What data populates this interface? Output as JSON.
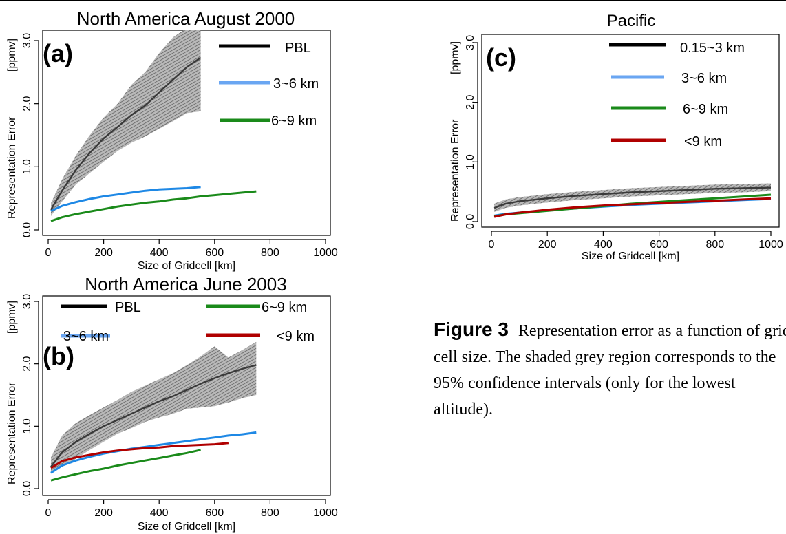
{
  "chart_data": [
    {
      "panel": "a",
      "type": "line",
      "panel_label": "(a)",
      "title": "North America August 2000",
      "xlabel": "Size of Gridcell [km]",
      "ylabel": "Representation Error",
      "yunit": "[ppmv]",
      "xlim": [
        0,
        1000
      ],
      "ylim": [
        0,
        3
      ],
      "xticks": [
        "0",
        "200",
        "400",
        "600",
        "800",
        "1000"
      ],
      "yticks": [
        "0.0",
        "1.0",
        "2.0",
        "3.0"
      ],
      "grid": false,
      "legend_position": "top-right",
      "series": [
        {
          "name": "PBL",
          "color": "#000000",
          "x": [
            10,
            50,
            100,
            150,
            200,
            250,
            300,
            350,
            400,
            450,
            500,
            550
          ],
          "y": [
            0.32,
            0.62,
            0.95,
            1.22,
            1.45,
            1.63,
            1.82,
            1.97,
            2.18,
            2.38,
            2.58,
            2.73
          ]
        },
        {
          "name": "3~6 km",
          "color": "#1e88e5",
          "x": [
            10,
            50,
            100,
            150,
            200,
            250,
            300,
            350,
            400,
            450,
            500,
            550
          ],
          "y": [
            0.3,
            0.38,
            0.44,
            0.49,
            0.53,
            0.56,
            0.59,
            0.62,
            0.64,
            0.65,
            0.66,
            0.68
          ]
        },
        {
          "name": "6~9 km",
          "color": "#1a8a1a",
          "x": [
            10,
            50,
            100,
            150,
            200,
            250,
            300,
            350,
            400,
            450,
            500,
            550,
            600,
            650,
            700,
            750
          ],
          "y": [
            0.14,
            0.2,
            0.25,
            0.29,
            0.33,
            0.37,
            0.4,
            0.43,
            0.45,
            0.48,
            0.5,
            0.53,
            0.55,
            0.57,
            0.59,
            0.61
          ]
        }
      ],
      "band": {
        "x": [
          10,
          50,
          100,
          150,
          200,
          250,
          300,
          350,
          400,
          450,
          500,
          550
        ],
        "lower": [
          0.22,
          0.45,
          0.72,
          0.9,
          1.08,
          1.25,
          1.38,
          1.48,
          1.6,
          1.72,
          1.85,
          1.88
        ],
        "upper": [
          0.42,
          0.8,
          1.18,
          1.5,
          1.78,
          2.0,
          2.3,
          2.5,
          2.8,
          3.05,
          3.2,
          3.2
        ]
      }
    },
    {
      "panel": "b",
      "type": "line",
      "panel_label": "(b)",
      "title": "North America June 2003",
      "xlabel": "Size of Gridcell [km]",
      "ylabel": "Representation Error",
      "yunit": "[ppmv]",
      "xlim": [
        0,
        1000
      ],
      "ylim": [
        0,
        3
      ],
      "xticks": [
        "0",
        "200",
        "400",
        "600",
        "800",
        "1000"
      ],
      "yticks": [
        "0.0",
        "1.0",
        "2.0",
        "3.0"
      ],
      "grid": false,
      "legend_position": "top",
      "series": [
        {
          "name": "PBL",
          "color": "#000000",
          "x": [
            10,
            50,
            100,
            150,
            200,
            250,
            300,
            350,
            400,
            450,
            500,
            550,
            600,
            650,
            700,
            750
          ],
          "y": [
            0.35,
            0.58,
            0.75,
            0.88,
            1.0,
            1.1,
            1.2,
            1.3,
            1.4,
            1.48,
            1.58,
            1.68,
            1.77,
            1.85,
            1.92,
            1.98
          ]
        },
        {
          "name": "3~6 km",
          "color": "#1e88e5",
          "x": [
            10,
            50,
            100,
            150,
            200,
            250,
            300,
            350,
            400,
            450,
            500,
            550,
            600,
            650,
            700,
            750
          ],
          "y": [
            0.25,
            0.37,
            0.45,
            0.51,
            0.56,
            0.6,
            0.64,
            0.67,
            0.7,
            0.73,
            0.76,
            0.79,
            0.82,
            0.85,
            0.87,
            0.9
          ]
        },
        {
          "name": "6~9 km",
          "color": "#1a8a1a",
          "x": [
            10,
            50,
            100,
            150,
            200,
            250,
            300,
            350,
            400,
            450,
            500,
            550
          ],
          "y": [
            0.13,
            0.18,
            0.23,
            0.28,
            0.32,
            0.37,
            0.41,
            0.45,
            0.49,
            0.53,
            0.57,
            0.62
          ]
        },
        {
          "name": "<9 km",
          "color": "#b00000",
          "x": [
            10,
            50,
            100,
            150,
            200,
            250,
            300,
            350,
            400,
            450,
            500,
            550,
            600,
            650
          ],
          "y": [
            0.33,
            0.44,
            0.5,
            0.54,
            0.58,
            0.61,
            0.63,
            0.65,
            0.66,
            0.68,
            0.69,
            0.7,
            0.71,
            0.73
          ]
        }
      ],
      "band": {
        "x": [
          10,
          50,
          100,
          150,
          200,
          250,
          300,
          350,
          400,
          450,
          500,
          550,
          600,
          650,
          700,
          750
        ],
        "lower": [
          0.25,
          0.35,
          0.48,
          0.62,
          0.75,
          0.88,
          0.97,
          1.07,
          1.14,
          1.2,
          1.28,
          1.3,
          1.32,
          1.38,
          1.45,
          1.5
        ],
        "upper": [
          0.5,
          0.85,
          1.05,
          1.18,
          1.3,
          1.42,
          1.55,
          1.65,
          1.75,
          1.85,
          1.98,
          2.12,
          2.28,
          2.1,
          2.22,
          2.35
        ]
      }
    },
    {
      "panel": "c",
      "type": "line",
      "panel_label": "(c)",
      "title": "Pacific",
      "xlabel": "Size of Gridcell [km]",
      "ylabel": "Representation Error",
      "yunit": "[ppmv]",
      "xlim": [
        0,
        1000
      ],
      "ylim": [
        0,
        3
      ],
      "xticks": [
        "0",
        "200",
        "400",
        "600",
        "800",
        "1000"
      ],
      "yticks": [
        "0.0",
        "1.0",
        "2.0",
        "3.0"
      ],
      "grid": false,
      "legend_position": "top-right",
      "series": [
        {
          "name": "0.15~3 km",
          "color": "#000000",
          "x": [
            10,
            50,
            100,
            200,
            300,
            400,
            500,
            600,
            700,
            800,
            900,
            1000
          ],
          "y": [
            0.23,
            0.3,
            0.34,
            0.39,
            0.43,
            0.46,
            0.49,
            0.51,
            0.53,
            0.55,
            0.56,
            0.57
          ]
        },
        {
          "name": "3~6 km",
          "color": "#1e88e5",
          "x": [
            10,
            50,
            100,
            200,
            300,
            400,
            500,
            600,
            700,
            800,
            900,
            1000
          ],
          "y": [
            0.1,
            0.13,
            0.15,
            0.19,
            0.22,
            0.25,
            0.28,
            0.3,
            0.32,
            0.34,
            0.36,
            0.38
          ]
        },
        {
          "name": "6~9 km",
          "color": "#1a8a1a",
          "x": [
            10,
            50,
            100,
            200,
            300,
            400,
            500,
            600,
            700,
            800,
            900,
            1000
          ],
          "y": [
            0.09,
            0.12,
            0.14,
            0.18,
            0.22,
            0.26,
            0.3,
            0.33,
            0.36,
            0.39,
            0.42,
            0.45
          ]
        },
        {
          "name": "<9 km",
          "color": "#b00000",
          "x": [
            10,
            50,
            100,
            200,
            300,
            400,
            500,
            600,
            700,
            800,
            900,
            1000
          ],
          "y": [
            0.08,
            0.12,
            0.15,
            0.2,
            0.24,
            0.27,
            0.29,
            0.31,
            0.33,
            0.35,
            0.37,
            0.39
          ]
        }
      ],
      "band": {
        "x": [
          10,
          50,
          100,
          200,
          300,
          400,
          500,
          600,
          700,
          800,
          900,
          1000
        ],
        "lower": [
          0.16,
          0.23,
          0.27,
          0.32,
          0.36,
          0.39,
          0.42,
          0.44,
          0.46,
          0.48,
          0.49,
          0.51
        ],
        "upper": [
          0.3,
          0.37,
          0.41,
          0.46,
          0.5,
          0.53,
          0.56,
          0.58,
          0.6,
          0.62,
          0.63,
          0.64
        ]
      }
    }
  ],
  "caption": {
    "figure_label": "Figure 3",
    "text": "Representation error as a function of grid cell size. The shaded grey region corresponds to the 95% confidence intervals (only for the lowest altitude)."
  }
}
